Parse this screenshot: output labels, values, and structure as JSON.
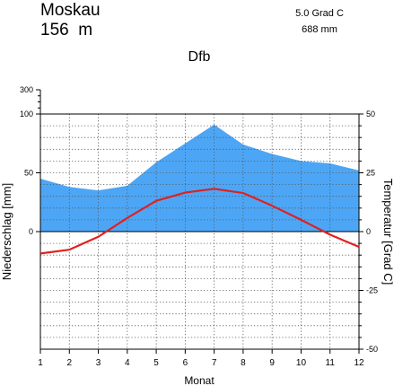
{
  "header": {
    "station": "Moskau",
    "elevation": "156  m",
    "annual_temp": "5.0 Grad C",
    "annual_precip": "688 mm",
    "climate_class": "Dfb"
  },
  "chart_data": {
    "type": "area",
    "title": "Dfb",
    "xlabel": "Monat",
    "ylabel_left": "Niederschlag [mm]",
    "ylabel_right": "Temperatur [Grad C]",
    "x": [
      1,
      2,
      3,
      4,
      5,
      6,
      7,
      8,
      9,
      10,
      11,
      12
    ],
    "x_ticks": [
      "1",
      "2",
      "3",
      "4",
      "5",
      "6",
      "7",
      "8",
      "9",
      "10",
      "11",
      "12"
    ],
    "precip_ticks": [
      "300",
      "100",
      "50",
      "0"
    ],
    "temp_ticks": [
      "50",
      "25",
      "0",
      "-25",
      "-50"
    ],
    "precip_ylim": [
      0,
      100
    ],
    "temp_ylim": [
      -50,
      50
    ],
    "grid": true,
    "series": [
      {
        "name": "Niederschlag",
        "unit": "mm",
        "color": "#4da6f5",
        "values": [
          45,
          38,
          35,
          39,
          59,
          75,
          91,
          74,
          66,
          60,
          58,
          52
        ]
      },
      {
        "name": "Temperatur",
        "unit": "Grad C",
        "color": "#e02020",
        "values": [
          -9.3,
          -7.7,
          -2.2,
          5.8,
          13.1,
          16.6,
          18.2,
          16.4,
          11.0,
          5.0,
          -1.3,
          -6.5
        ]
      }
    ]
  }
}
